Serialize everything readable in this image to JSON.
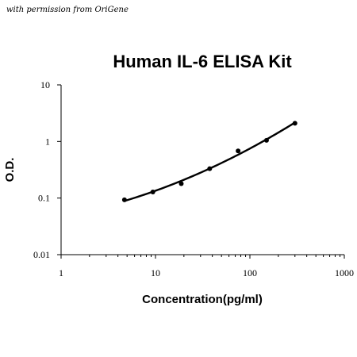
{
  "credit": "with permission from OriGene",
  "chart_data": {
    "type": "scatter",
    "title": "Human IL-6 ELISA Kit",
    "xlabel": "Concentration(pg/ml)",
    "ylabel": "O.D.",
    "x_scale": "log",
    "y_scale": "log",
    "xlim": [
      1,
      1000
    ],
    "ylim": [
      0.01,
      10
    ],
    "x_ticks": [
      "1",
      "10",
      "100",
      "1000"
    ],
    "y_ticks": [
      "10",
      "1",
      "0.1",
      "0.01"
    ],
    "grid": false,
    "series": [
      {
        "points": [
          {
            "x": 4.69,
            "y": 0.093
          },
          {
            "x": 9.38,
            "y": 0.128
          },
          {
            "x": 18.75,
            "y": 0.18
          },
          {
            "x": 37.5,
            "y": 0.33
          },
          {
            "x": 75,
            "y": 0.68
          },
          {
            "x": 150,
            "y": 1.05
          },
          {
            "x": 300,
            "y": 2.1
          }
        ],
        "fit": "smooth curve"
      }
    ]
  }
}
